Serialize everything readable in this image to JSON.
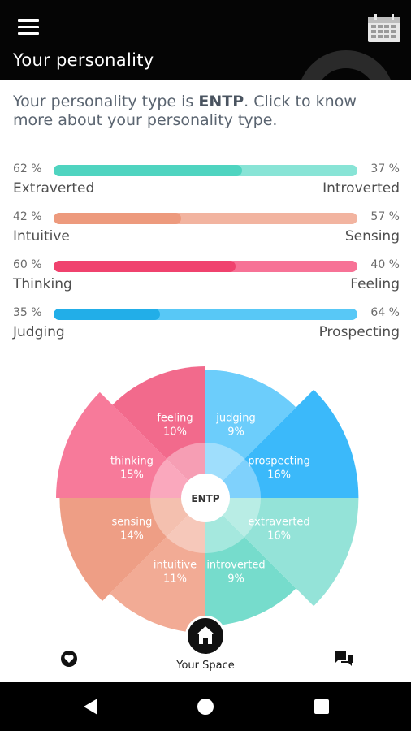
{
  "header": {
    "title": "Your personality",
    "menu_icon": "hamburger-menu-icon",
    "calendar_icon": "calendar-icon"
  },
  "intro": {
    "prefix": "Your personality type is ",
    "type": "ENTP",
    "suffix": ". Click to know more about your personality type."
  },
  "traits": [
    {
      "left_pct": "62 %",
      "right_pct": "37 %",
      "left_label": "Extraverted",
      "right_label": "Introverted",
      "level": 0.62,
      "fill_color": "#4fd4c0",
      "track_color": "#88e4d6"
    },
    {
      "left_pct": "42 %",
      "right_pct": "57 %",
      "left_label": "Intuitive",
      "right_label": "Sensing",
      "level": 0.42,
      "fill_color": "#ed9a7d",
      "track_color": "#f2b4a0"
    },
    {
      "left_pct": "60 %",
      "right_pct": "40 %",
      "left_label": "Thinking",
      "right_label": "Feeling",
      "level": 0.6,
      "fill_color": "#f0426e",
      "track_color": "#f77296"
    },
    {
      "left_pct": "35 %",
      "right_pct": "64 %",
      "left_label": "Judging",
      "right_label": "Prospecting",
      "level": 0.35,
      "fill_color": "#22aee8",
      "track_color": "#58c8f6"
    }
  ],
  "wheel": {
    "center_label": "ENTP",
    "segments": [
      {
        "name": "judging",
        "pct": "9%",
        "value": 9,
        "color": "#6ccdfb"
      },
      {
        "name": "prospecting",
        "pct": "16%",
        "value": 16,
        "color": "#3bb9fa"
      },
      {
        "name": "extraverted",
        "pct": "16%",
        "value": 16,
        "color": "#94e3d8"
      },
      {
        "name": "introverted",
        "pct": "9%",
        "value": 9,
        "color": "#76dccc"
      },
      {
        "name": "intuitive",
        "pct": "11%",
        "value": 11,
        "color": "#f2ab95"
      },
      {
        "name": "sensing",
        "pct": "14%",
        "value": 14,
        "color": "#ee9e85"
      },
      {
        "name": "thinking",
        "pct": "15%",
        "value": 15,
        "color": "#f77a9a"
      },
      {
        "name": "feeling",
        "pct": "10%",
        "value": 10,
        "color": "#f26a8c"
      }
    ]
  },
  "bottom_nav": {
    "favorites_icon": "heart-badge-icon",
    "home_icon": "home-icon",
    "home_label": "Your Space",
    "chat_icon": "chat-bubbles-icon"
  },
  "system_nav": {
    "back_icon": "back-triangle-icon",
    "home_icon": "home-circle-icon",
    "recents_icon": "recents-square-icon"
  }
}
